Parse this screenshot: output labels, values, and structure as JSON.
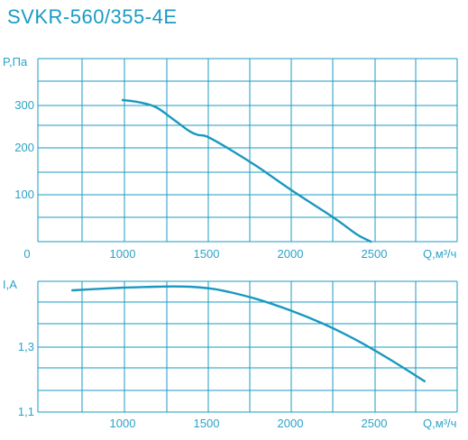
{
  "title": "SVKR-560/355-4E",
  "colors": {
    "accent": "#1a9bc4",
    "curve": "#1a98c0",
    "background": "#ffffff"
  },
  "chart_data": [
    {
      "type": "line",
      "ylabel": "P,Па",
      "xlabel": "Q,м³/ч",
      "xlim": [
        500,
        2950
      ],
      "ylim": [
        0,
        390
      ],
      "grid": true,
      "x_ticks": [
        0,
        1000,
        1500,
        2000,
        2500
      ],
      "y_ticks": [
        100,
        200,
        300
      ],
      "series": [
        {
          "x": [
            1000,
            1100,
            1200,
            1300,
            1400,
            1450,
            1500,
            1600,
            1800,
            2000,
            2200,
            2300,
            2400,
            2480
          ],
          "y": [
            312,
            307,
            296,
            270,
            243,
            235,
            232,
            212,
            166,
            115,
            67,
            42,
            15,
            0
          ]
        }
      ]
    },
    {
      "type": "line",
      "ylabel": "I,A",
      "xlabel": "Q,м³/ч",
      "xlim": [
        500,
        2950
      ],
      "ylim": [
        1.1,
        1.5
      ],
      "grid": true,
      "x_ticks": [
        1000,
        1500,
        2000,
        2500
      ],
      "y_ticks": [
        "1,1",
        "1,3"
      ],
      "series": [
        {
          "x": [
            700,
            800,
            1000,
            1200,
            1300,
            1400,
            1500,
            1600,
            1800,
            2000,
            2200,
            2400,
            2600,
            2800
          ],
          "y": [
            1.475,
            1.478,
            1.483,
            1.486,
            1.487,
            1.486,
            1.482,
            1.474,
            1.448,
            1.413,
            1.371,
            1.32,
            1.26,
            1.195
          ]
        }
      ]
    }
  ]
}
